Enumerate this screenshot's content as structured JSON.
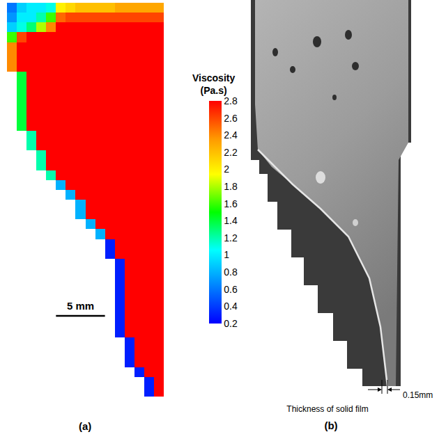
{
  "chart_data": {
    "type": "heatmap",
    "label": "(a)",
    "colorbar_title": "Viscosity (Pa.s)",
    "zlim": [
      0.2,
      2.8
    ],
    "zticks": [
      0.2,
      0.4,
      0.6,
      0.8,
      1,
      1.2,
      1.4,
      1.6,
      1.8,
      2,
      2.2,
      2.4,
      2.6,
      2.8
    ],
    "xlim": [
      0,
      16
    ],
    "ylim": [
      40,
      0
    ],
    "tick_labels": false,
    "scale_bar": {
      "length": 5,
      "label": "5 mm"
    },
    "cells": [
      [
        0.6,
        0.9,
        1.0,
        1.0,
        1.1,
        2.0,
        2.1,
        2.2,
        2.2,
        2.2,
        2.2,
        2.3,
        2.3,
        2.3,
        2.3,
        2.3
      ],
      [
        0.7,
        1.0,
        1.0,
        1.2,
        1.6,
        2.5,
        2.6,
        2.6,
        2.6,
        2.6,
        2.6,
        2.6,
        2.6,
        2.6,
        2.6,
        2.6
      ],
      [
        0.9,
        1.1,
        1.3,
        1.8,
        2.4,
        2.8,
        2.8,
        2.8,
        2.8,
        2.8,
        2.8,
        2.8,
        2.8,
        2.8,
        2.8,
        2.8
      ],
      [
        1.6,
        2.6,
        2.8,
        2.8,
        2.8,
        2.8,
        2.8,
        2.8,
        2.8,
        2.8,
        2.8,
        2.8,
        2.8,
        2.8,
        2.8,
        2.8
      ],
      [
        2.4,
        2.8,
        2.8,
        2.8,
        2.8,
        2.8,
        2.8,
        2.8,
        2.8,
        2.8,
        2.8,
        2.8,
        2.8,
        2.8,
        2.8,
        2.8
      ],
      [
        2.4,
        2.8,
        2.8,
        2.8,
        2.8,
        2.8,
        2.8,
        2.8,
        2.8,
        2.8,
        2.8,
        2.8,
        2.8,
        2.8,
        2.8,
        2.8
      ],
      [
        2.4,
        2.8,
        2.8,
        2.8,
        2.8,
        2.8,
        2.8,
        2.8,
        2.8,
        2.8,
        2.8,
        2.8,
        2.8,
        2.8,
        2.8,
        2.8
      ],
      [
        null,
        1.4,
        2.8,
        2.8,
        2.8,
        2.8,
        2.8,
        2.8,
        2.8,
        2.8,
        2.8,
        2.8,
        2.8,
        2.8,
        2.8,
        2.8
      ],
      [
        null,
        1.4,
        2.8,
        2.8,
        2.8,
        2.8,
        2.8,
        2.8,
        2.8,
        2.8,
        2.8,
        2.8,
        2.8,
        2.8,
        2.8,
        2.8
      ],
      [
        null,
        1.4,
        2.8,
        2.8,
        2.8,
        2.8,
        2.8,
        2.8,
        2.8,
        2.8,
        2.8,
        2.8,
        2.8,
        2.8,
        2.8,
        2.8
      ],
      [
        null,
        1.4,
        2.8,
        2.8,
        2.8,
        2.8,
        2.8,
        2.8,
        2.8,
        2.8,
        2.8,
        2.8,
        2.8,
        2.8,
        2.8,
        2.8
      ],
      [
        null,
        1.4,
        2.8,
        2.8,
        2.8,
        2.8,
        2.8,
        2.8,
        2.8,
        2.8,
        2.8,
        2.8,
        2.8,
        2.8,
        2.8,
        2.8
      ],
      [
        null,
        1.4,
        2.8,
        2.8,
        2.8,
        2.8,
        2.8,
        2.8,
        2.8,
        2.8,
        2.8,
        2.8,
        2.8,
        2.8,
        2.8,
        2.8
      ],
      [
        null,
        null,
        1.2,
        2.8,
        2.8,
        2.8,
        2.8,
        2.8,
        2.8,
        2.8,
        2.8,
        2.8,
        2.8,
        2.8,
        2.8,
        2.8
      ],
      [
        null,
        null,
        1.2,
        2.8,
        2.8,
        2.8,
        2.8,
        2.8,
        2.8,
        2.8,
        2.8,
        2.8,
        2.8,
        2.8,
        2.8,
        2.8
      ],
      [
        null,
        null,
        null,
        1.2,
        2.8,
        2.8,
        2.8,
        2.8,
        2.8,
        2.8,
        2.8,
        2.8,
        2.8,
        2.8,
        2.8,
        2.8
      ],
      [
        null,
        null,
        null,
        1.2,
        2.8,
        2.8,
        2.8,
        2.8,
        2.8,
        2.8,
        2.8,
        2.8,
        2.8,
        2.8,
        2.8,
        2.8
      ],
      [
        null,
        null,
        null,
        null,
        1.2,
        2.8,
        2.8,
        2.8,
        2.8,
        2.8,
        2.8,
        2.8,
        2.8,
        2.8,
        2.8,
        2.8
      ],
      [
        null,
        null,
        null,
        null,
        null,
        0.8,
        2.8,
        2.8,
        2.8,
        2.8,
        2.8,
        2.8,
        2.8,
        2.8,
        2.8,
        2.8
      ],
      [
        null,
        null,
        null,
        null,
        null,
        null,
        0.8,
        2.8,
        2.8,
        2.8,
        2.8,
        2.8,
        2.8,
        2.8,
        2.8,
        2.8
      ],
      [
        null,
        null,
        null,
        null,
        null,
        null,
        null,
        0.8,
        2.8,
        2.8,
        2.8,
        2.8,
        2.8,
        2.8,
        2.8,
        2.8
      ],
      [
        null,
        null,
        null,
        null,
        null,
        null,
        null,
        0.8,
        2.8,
        2.8,
        2.8,
        2.8,
        2.8,
        2.8,
        2.8,
        2.8
      ],
      [
        null,
        null,
        null,
        null,
        null,
        null,
        null,
        null,
        0.8,
        2.8,
        2.8,
        2.8,
        2.8,
        2.8,
        2.8,
        2.8
      ],
      [
        null,
        null,
        null,
        null,
        null,
        null,
        null,
        null,
        null,
        0.8,
        2.8,
        2.8,
        2.8,
        2.8,
        2.8,
        2.8
      ],
      [
        null,
        null,
        null,
        null,
        null,
        null,
        null,
        null,
        null,
        null,
        0.3,
        2.8,
        2.8,
        2.8,
        2.8,
        2.8
      ],
      [
        null,
        null,
        null,
        null,
        null,
        null,
        null,
        null,
        null,
        null,
        0.3,
        2.8,
        2.8,
        2.8,
        2.8,
        2.8
      ],
      [
        null,
        null,
        null,
        null,
        null,
        null,
        null,
        null,
        null,
        null,
        null,
        0.3,
        2.8,
        2.8,
        2.8,
        2.8
      ],
      [
        null,
        null,
        null,
        null,
        null,
        null,
        null,
        null,
        null,
        null,
        null,
        0.3,
        2.8,
        2.8,
        2.8,
        2.8
      ],
      [
        null,
        null,
        null,
        null,
        null,
        null,
        null,
        null,
        null,
        null,
        null,
        0.3,
        2.8,
        2.8,
        2.8,
        2.8
      ],
      [
        null,
        null,
        null,
        null,
        null,
        null,
        null,
        null,
        null,
        null,
        null,
        0.3,
        2.8,
        2.8,
        2.8,
        2.8
      ],
      [
        null,
        null,
        null,
        null,
        null,
        null,
        null,
        null,
        null,
        null,
        null,
        0.3,
        2.8,
        2.8,
        2.8,
        2.8
      ],
      [
        null,
        null,
        null,
        null,
        null,
        null,
        null,
        null,
        null,
        null,
        null,
        0.3,
        2.8,
        2.8,
        2.8,
        2.8
      ],
      [
        null,
        null,
        null,
        null,
        null,
        null,
        null,
        null,
        null,
        null,
        null,
        0.3,
        2.8,
        2.8,
        2.8,
        2.8
      ],
      [
        null,
        null,
        null,
        null,
        null,
        null,
        null,
        null,
        null,
        null,
        null,
        0.3,
        2.8,
        2.8,
        2.8,
        2.8
      ],
      [
        null,
        null,
        null,
        null,
        null,
        null,
        null,
        null,
        null,
        null,
        null,
        null,
        0.3,
        2.8,
        2.8,
        2.8
      ],
      [
        null,
        null,
        null,
        null,
        null,
        null,
        null,
        null,
        null,
        null,
        null,
        null,
        0.3,
        2.8,
        2.8,
        2.8
      ],
      [
        null,
        null,
        null,
        null,
        null,
        null,
        null,
        null,
        null,
        null,
        null,
        null,
        0.3,
        2.8,
        2.8,
        2.8
      ],
      [
        null,
        null,
        null,
        null,
        null,
        null,
        null,
        null,
        null,
        null,
        null,
        null,
        null,
        0.3,
        2.8,
        2.8
      ],
      [
        null,
        null,
        null,
        null,
        null,
        null,
        null,
        null,
        null,
        null,
        null,
        null,
        null,
        null,
        0.3,
        2.8
      ],
      [
        null,
        null,
        null,
        null,
        null,
        null,
        null,
        null,
        null,
        null,
        null,
        null,
        null,
        null,
        0.3,
        2.8
      ]
    ]
  },
  "photo_panel": {
    "label": "(b)",
    "film_thickness_label": "0.15mm",
    "caption": "Thickness of solid film"
  }
}
